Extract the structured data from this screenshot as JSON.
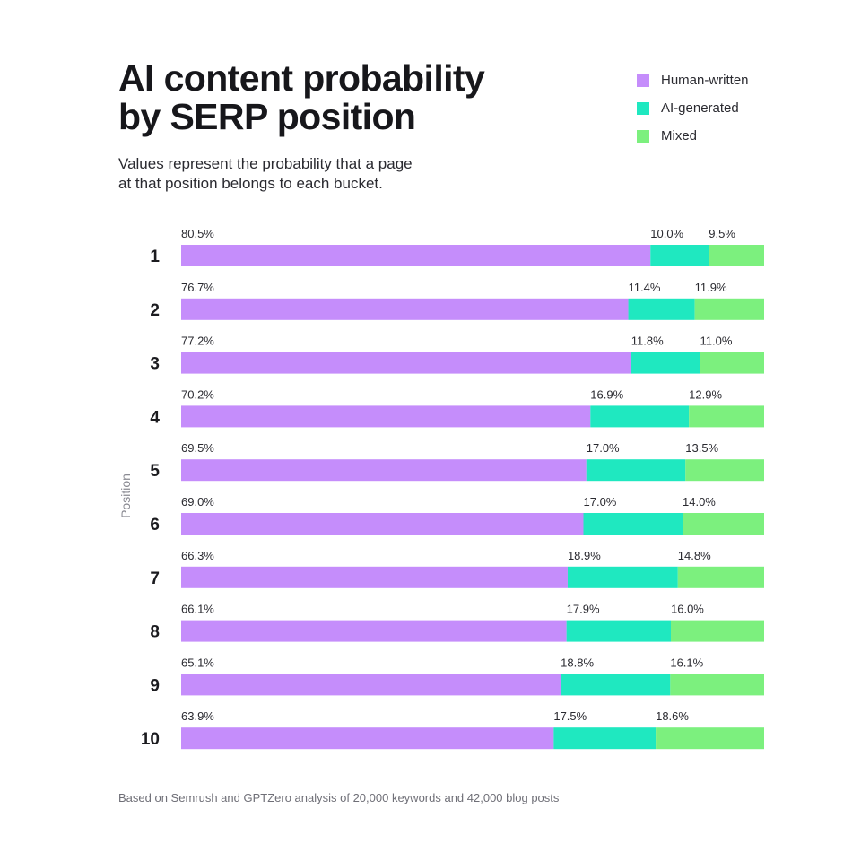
{
  "header": {
    "title_line1": "AI content probability",
    "title_line2": "by SERP position",
    "subtitle_line1": "Values represent the probability that a page",
    "subtitle_line2": "at that position belongs to each bucket."
  },
  "legend": {
    "items": [
      {
        "label": "Human-written",
        "color": "#c58dfb"
      },
      {
        "label": "AI-generated",
        "color": "#1fe8c0"
      },
      {
        "label": "Mixed",
        "color": "#7cf07e"
      }
    ]
  },
  "footnote": "Based on Semrush and GPTZero analysis of 20,000 keywords and 42,000 blog posts",
  "chart_data": {
    "type": "bar",
    "orientation": "horizontal",
    "stacked": true,
    "ylabel": "Position",
    "xlim": [
      0,
      100
    ],
    "unit": "%",
    "categories": [
      "1",
      "2",
      "3",
      "4",
      "5",
      "6",
      "7",
      "8",
      "9",
      "10"
    ],
    "series": [
      {
        "name": "Human-written",
        "color": "#c58dfb",
        "values": [
          80.5,
          76.7,
          77.2,
          70.2,
          69.5,
          69.0,
          66.3,
          66.1,
          65.1,
          63.9
        ]
      },
      {
        "name": "AI-generated",
        "color": "#1fe8c0",
        "values": [
          10.0,
          11.4,
          11.8,
          16.9,
          17.0,
          17.0,
          18.9,
          17.9,
          18.8,
          17.5
        ]
      },
      {
        "name": "Mixed",
        "color": "#7cf07e",
        "values": [
          9.5,
          11.9,
          11.0,
          12.9,
          13.5,
          14.0,
          14.8,
          16.0,
          16.1,
          18.6
        ]
      }
    ]
  }
}
